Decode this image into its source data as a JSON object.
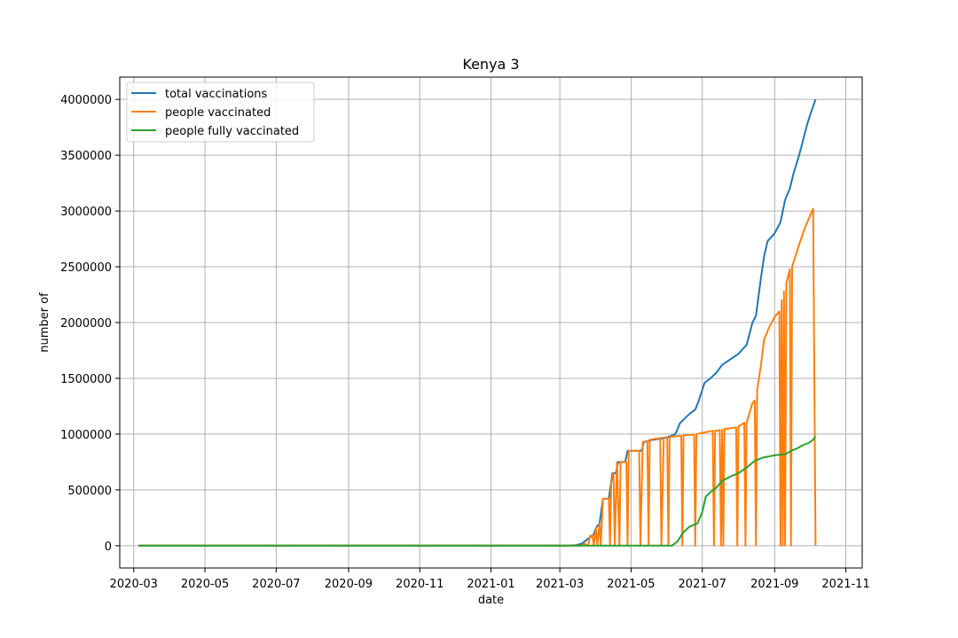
{
  "chart_data": {
    "type": "line",
    "title": "Kenya 3",
    "xlabel": "date",
    "ylabel": "number of",
    "grid": true,
    "legend_position": "top-left",
    "xlim": [
      "2020-02-18",
      "2021-11-15"
    ],
    "ylim": [
      -200000,
      4200000
    ],
    "x_ticks": [
      "2020-03",
      "2020-05",
      "2020-07",
      "2020-09",
      "2020-11",
      "2021-01",
      "2021-03",
      "2021-05",
      "2021-07",
      "2021-09",
      "2021-11"
    ],
    "y_ticks": [
      0,
      500000,
      1000000,
      1500000,
      2000000,
      2500000,
      3000000,
      3500000,
      4000000
    ],
    "y_tick_labels": [
      "0",
      "500000",
      "1000000",
      "1500000",
      "2000000",
      "2500000",
      "3000000",
      "3500000",
      "4000000"
    ],
    "series": [
      {
        "name": "total vaccinations",
        "color": "#1f77b4",
        "points": [
          [
            "2020-03-05",
            0
          ],
          [
            "2021-03-05",
            0
          ],
          [
            "2021-03-15",
            5000
          ],
          [
            "2021-03-20",
            20000
          ],
          [
            "2021-03-25",
            60000
          ],
          [
            "2021-03-30",
            100000
          ],
          [
            "2021-04-01",
            160000
          ],
          [
            "2021-04-04",
            200000
          ],
          [
            "2021-04-07",
            420000
          ],
          [
            "2021-04-12",
            420000
          ],
          [
            "2021-04-15",
            650000
          ],
          [
            "2021-04-18",
            650000
          ],
          [
            "2021-04-20",
            750000
          ],
          [
            "2021-04-26",
            750000
          ],
          [
            "2021-04-28",
            850000
          ],
          [
            "2021-05-10",
            850000
          ],
          [
            "2021-05-12",
            930000
          ],
          [
            "2021-05-20",
            950000
          ],
          [
            "2021-06-01",
            970000
          ],
          [
            "2021-06-08",
            1000000
          ],
          [
            "2021-06-12",
            1100000
          ],
          [
            "2021-06-20",
            1180000
          ],
          [
            "2021-06-25",
            1220000
          ],
          [
            "2021-06-28",
            1300000
          ],
          [
            "2021-07-03",
            1460000
          ],
          [
            "2021-07-08",
            1500000
          ],
          [
            "2021-07-13",
            1550000
          ],
          [
            "2021-07-18",
            1620000
          ],
          [
            "2021-07-25",
            1670000
          ],
          [
            "2021-08-01",
            1720000
          ],
          [
            "2021-08-08",
            1800000
          ],
          [
            "2021-08-13",
            2000000
          ],
          [
            "2021-08-16",
            2060000
          ],
          [
            "2021-08-20",
            2380000
          ],
          [
            "2021-08-23",
            2600000
          ],
          [
            "2021-08-26",
            2730000
          ],
          [
            "2021-09-01",
            2800000
          ],
          [
            "2021-09-06",
            2900000
          ],
          [
            "2021-09-10",
            3100000
          ],
          [
            "2021-09-14",
            3200000
          ],
          [
            "2021-09-17",
            3330000
          ],
          [
            "2021-09-22",
            3500000
          ],
          [
            "2021-09-25",
            3620000
          ],
          [
            "2021-09-29",
            3780000
          ],
          [
            "2021-10-02",
            3880000
          ],
          [
            "2021-10-06",
            4000000
          ]
        ]
      },
      {
        "name": "people vaccinated",
        "color": "#ff7f0e",
        "points": [
          [
            "2020-03-05",
            0
          ],
          [
            "2021-03-20",
            0
          ],
          [
            "2021-03-22",
            20000
          ],
          [
            "2021-03-25",
            0
          ],
          [
            "2021-03-27",
            90000
          ],
          [
            "2021-03-29",
            90000
          ],
          [
            "2021-03-30",
            0
          ],
          [
            "2021-04-01",
            160000
          ],
          [
            "2021-04-02",
            0
          ],
          [
            "2021-04-04",
            200000
          ],
          [
            "2021-04-05",
            0
          ],
          [
            "2021-04-07",
            420000
          ],
          [
            "2021-04-12",
            420000
          ],
          [
            "2021-04-13",
            0
          ],
          [
            "2021-04-14",
            560000
          ],
          [
            "2021-04-16",
            650000
          ],
          [
            "2021-04-17",
            0
          ],
          [
            "2021-04-19",
            750000
          ],
          [
            "2021-04-21",
            0
          ],
          [
            "2021-04-22",
            750000
          ],
          [
            "2021-04-27",
            750000
          ],
          [
            "2021-04-28",
            0
          ],
          [
            "2021-04-29",
            850000
          ],
          [
            "2021-05-08",
            850000
          ],
          [
            "2021-05-09",
            0
          ],
          [
            "2021-05-11",
            930000
          ],
          [
            "2021-05-15",
            940000
          ],
          [
            "2021-05-16",
            0
          ],
          [
            "2021-05-17",
            950000
          ],
          [
            "2021-05-26",
            965000
          ],
          [
            "2021-05-27",
            0
          ],
          [
            "2021-05-29",
            970000
          ],
          [
            "2021-06-01",
            970000
          ],
          [
            "2021-06-02",
            0
          ],
          [
            "2021-06-03",
            975000
          ],
          [
            "2021-06-13",
            985000
          ],
          [
            "2021-06-14",
            0
          ],
          [
            "2021-06-15",
            990000
          ],
          [
            "2021-06-24",
            995000
          ],
          [
            "2021-06-25",
            0
          ],
          [
            "2021-06-26",
            1000000
          ],
          [
            "2021-07-10",
            1030000
          ],
          [
            "2021-07-11",
            0
          ],
          [
            "2021-07-12",
            1030000
          ],
          [
            "2021-07-16",
            1035000
          ],
          [
            "2021-07-17",
            0
          ],
          [
            "2021-07-18",
            1040000
          ],
          [
            "2021-07-19",
            0
          ],
          [
            "2021-07-20",
            1045000
          ],
          [
            "2021-07-30",
            1060000
          ],
          [
            "2021-07-31",
            0
          ],
          [
            "2021-08-01",
            1070000
          ],
          [
            "2021-08-06",
            1100000
          ],
          [
            "2021-08-07",
            0
          ],
          [
            "2021-08-08",
            1100000
          ],
          [
            "2021-08-13",
            1280000
          ],
          [
            "2021-08-15",
            1300000
          ],
          [
            "2021-08-16",
            0
          ],
          [
            "2021-08-17",
            1400000
          ],
          [
            "2021-08-20",
            1600000
          ],
          [
            "2021-08-23",
            1850000
          ],
          [
            "2021-08-27",
            1950000
          ],
          [
            "2021-09-01",
            2050000
          ],
          [
            "2021-09-05",
            2100000
          ],
          [
            "2021-09-06",
            0
          ],
          [
            "2021-09-07",
            2200000
          ],
          [
            "2021-09-08",
            0
          ],
          [
            "2021-09-09",
            2280000
          ],
          [
            "2021-09-10",
            0
          ],
          [
            "2021-09-11",
            2350000
          ],
          [
            "2021-09-14",
            2480000
          ],
          [
            "2021-09-15",
            0
          ],
          [
            "2021-09-16",
            2500000
          ],
          [
            "2021-09-22",
            2700000
          ],
          [
            "2021-09-27",
            2850000
          ],
          [
            "2021-10-01",
            2950000
          ],
          [
            "2021-10-04",
            3020000
          ],
          [
            "2021-10-06",
            0
          ]
        ]
      },
      {
        "name": "people fully vaccinated",
        "color": "#2ca02c",
        "points": [
          [
            "2020-03-05",
            0
          ],
          [
            "2021-06-05",
            0
          ],
          [
            "2021-06-10",
            40000
          ],
          [
            "2021-06-14",
            110000
          ],
          [
            "2021-06-20",
            170000
          ],
          [
            "2021-06-27",
            200000
          ],
          [
            "2021-07-01",
            300000
          ],
          [
            "2021-07-04",
            440000
          ],
          [
            "2021-07-08",
            480000
          ],
          [
            "2021-07-13",
            520000
          ],
          [
            "2021-07-18",
            580000
          ],
          [
            "2021-07-25",
            620000
          ],
          [
            "2021-08-01",
            650000
          ],
          [
            "2021-08-08",
            700000
          ],
          [
            "2021-08-15",
            760000
          ],
          [
            "2021-08-22",
            790000
          ],
          [
            "2021-09-01",
            810000
          ],
          [
            "2021-09-10",
            820000
          ],
          [
            "2021-09-15",
            850000
          ],
          [
            "2021-09-20",
            870000
          ],
          [
            "2021-09-25",
            900000
          ],
          [
            "2021-09-30",
            920000
          ],
          [
            "2021-10-04",
            950000
          ],
          [
            "2021-10-06",
            980000
          ]
        ]
      }
    ]
  }
}
